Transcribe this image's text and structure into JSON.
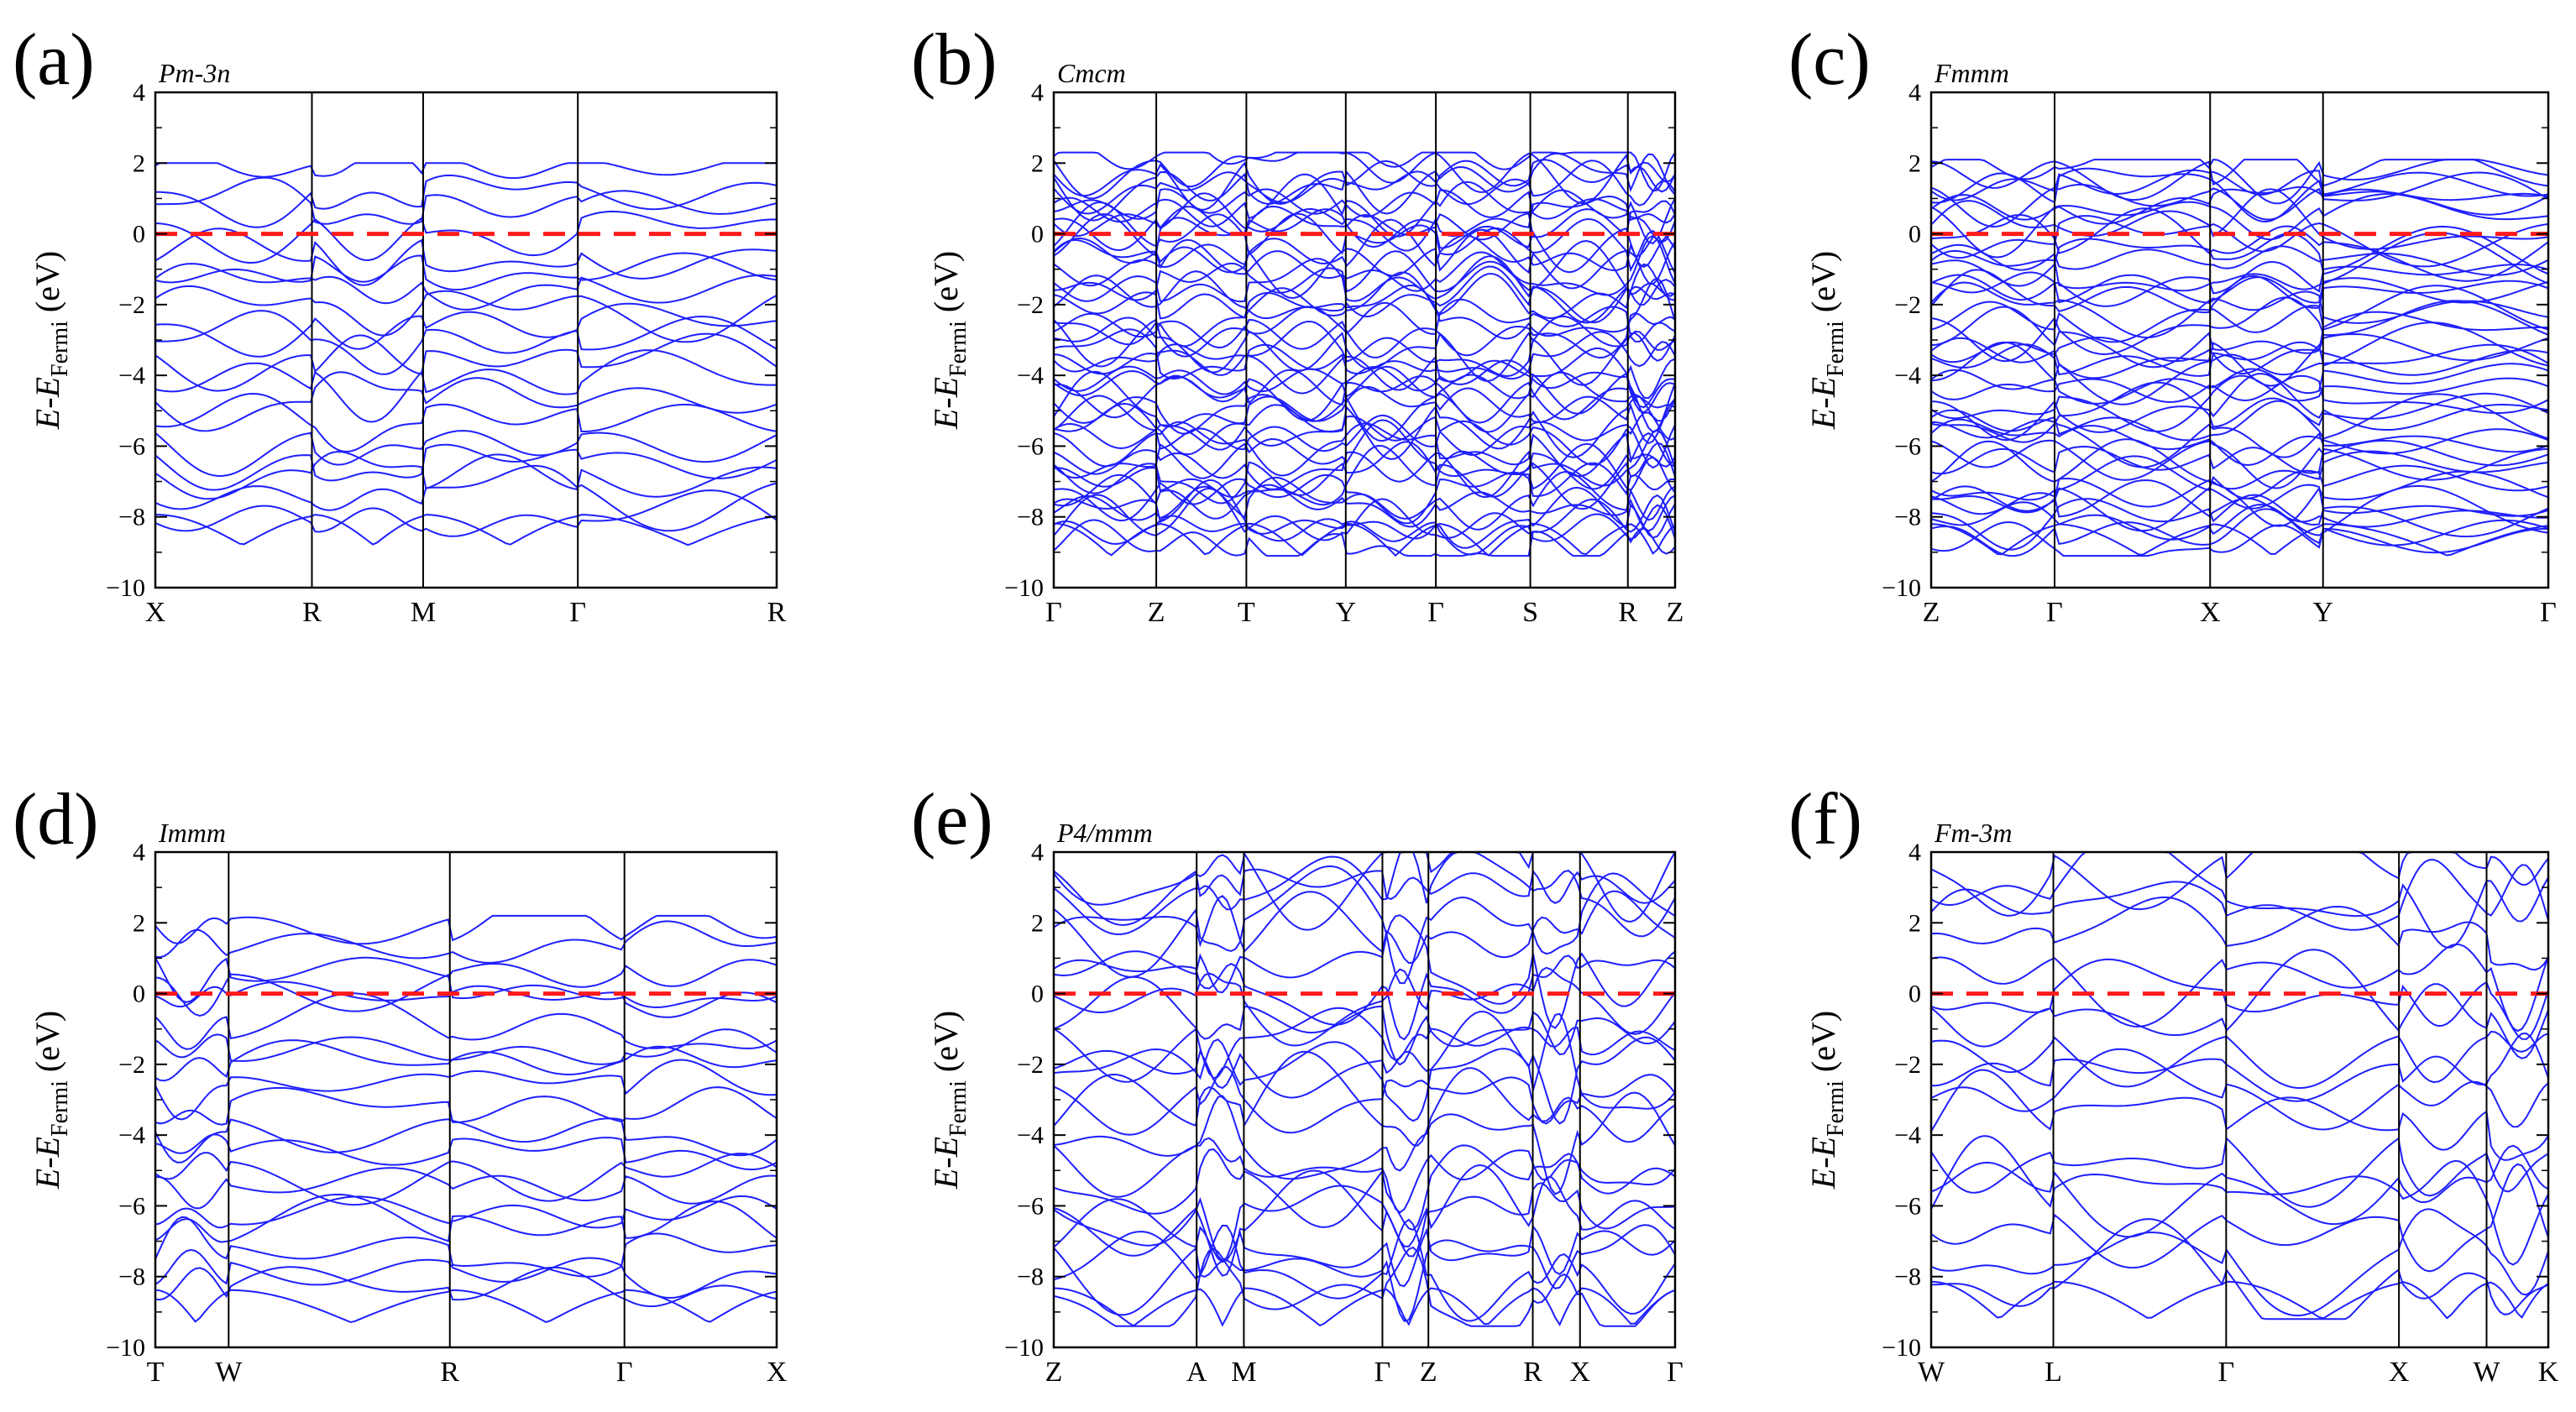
{
  "colors": {
    "band": "#1f1fff",
    "fermi": "#ff1a1a",
    "axis": "#000000",
    "background": "#ffffff"
  },
  "ylabel": {
    "e": "E",
    "dash": "-",
    "ef": "E",
    "sub": "Fermi",
    "unit": " (eV)"
  },
  "chart_data": [
    {
      "type": "line",
      "panel": "(a)",
      "space_group": "Pm-3n",
      "ylim": [
        -10,
        4
      ],
      "yticks": [
        4,
        2,
        0,
        -2,
        -4,
        -6,
        -8,
        -10
      ],
      "kpoints": [
        "X",
        "R",
        "M",
        "Γ",
        "R"
      ],
      "kpoint_positions": [
        0,
        0.252,
        0.431,
        0.68,
        1.0
      ],
      "fermi_level": 0,
      "band_edges": {
        "min": -8.8,
        "max": 2.0
      }
    },
    {
      "type": "line",
      "panel": "(b)",
      "space_group": "Cmcm",
      "ylim": [
        -10,
        4
      ],
      "yticks": [
        4,
        2,
        0,
        -2,
        -4,
        -6,
        -8,
        -10
      ],
      "kpoints": [
        "Γ",
        "Z",
        "T",
        "Y",
        "Γ",
        "S",
        "R",
        "Z"
      ],
      "kpoint_positions": [
        0,
        0.165,
        0.31,
        0.47,
        0.615,
        0.767,
        0.924,
        1.0
      ],
      "fermi_level": 0,
      "band_edges": {
        "min": -9.1,
        "max": 2.3
      }
    },
    {
      "type": "line",
      "panel": "(c)",
      "space_group": "Fmmm",
      "ylim": [
        -10,
        4
      ],
      "yticks": [
        4,
        2,
        0,
        -2,
        -4,
        -6,
        -8,
        -10
      ],
      "kpoints": [
        "Z",
        "Γ",
        "X",
        "Y",
        "Γ"
      ],
      "kpoint_positions": [
        0,
        0.2,
        0.452,
        0.635,
        1.0
      ],
      "fermi_level": 0,
      "band_edges": {
        "min": -9.1,
        "max": 2.1
      }
    },
    {
      "type": "line",
      "panel": "(d)",
      "space_group": "Immm",
      "ylim": [
        -10,
        4
      ],
      "yticks": [
        4,
        2,
        0,
        -2,
        -4,
        -6,
        -8,
        -10
      ],
      "kpoints": [
        "T",
        "W",
        "R",
        "Γ",
        "X"
      ],
      "kpoint_positions": [
        0,
        0.118,
        0.474,
        0.755,
        1.0
      ],
      "fermi_level": 0,
      "band_edges": {
        "min": -9.3,
        "max": 2.2
      }
    },
    {
      "type": "line",
      "panel": "(e)",
      "space_group": "P4/mmm",
      "ylim": [
        -10,
        4
      ],
      "yticks": [
        4,
        2,
        0,
        -2,
        -4,
        -6,
        -8,
        -10
      ],
      "kpoints": [
        "Z",
        "A",
        "M",
        "Γ",
        "Z",
        "R",
        "X",
        "Γ"
      ],
      "kpoint_positions": [
        0,
        0.23,
        0.306,
        0.529,
        0.603,
        0.771,
        0.847,
        1.0
      ],
      "fermi_level": 0,
      "band_edges": {
        "min": -9.4,
        "max": 4.0
      }
    },
    {
      "type": "line",
      "panel": "(f)",
      "space_group": "Fm-3m",
      "ylim": [
        -10,
        4
      ],
      "yticks": [
        4,
        2,
        0,
        -2,
        -4,
        -6,
        -8,
        -10
      ],
      "kpoints": [
        "W",
        "L",
        "Γ",
        "X",
        "W",
        "K"
      ],
      "kpoint_positions": [
        0,
        0.198,
        0.478,
        0.758,
        0.9,
        1.0
      ],
      "fermi_level": 0,
      "band_edges": {
        "min": -9.2,
        "max": 4.0
      }
    }
  ]
}
